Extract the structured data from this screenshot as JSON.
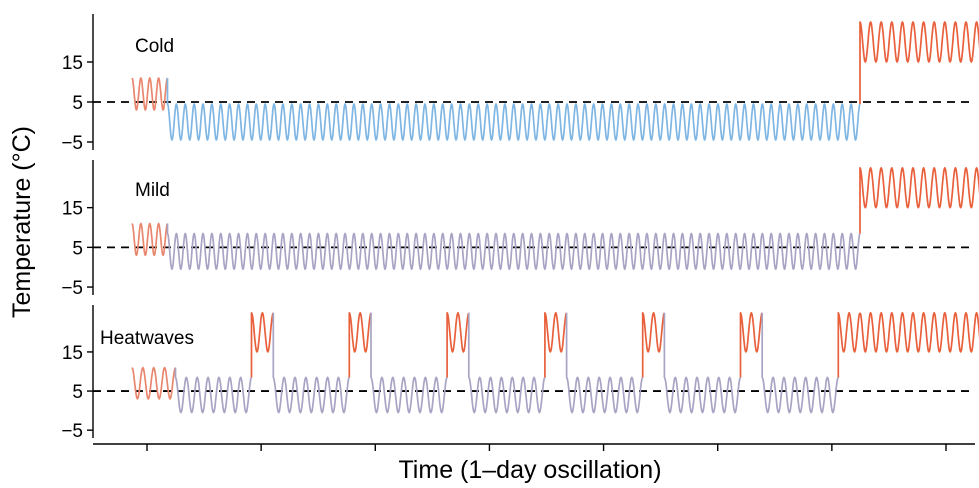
{
  "chart_data": {
    "type": "line",
    "xlabel": "Time (1–day oscillation)",
    "ylabel": "Temperature (°C)",
    "y_ticks": [
      15,
      5,
      -5
    ],
    "y_tick_labels": [
      "15",
      "5",
      "−5"
    ],
    "ylim": [
      -7,
      27
    ],
    "reference_line": 5,
    "x_tick_count": 8,
    "x_tick_labels": [],
    "grid": false,
    "colors": {
      "warm": "#e8603c",
      "cool": "#7fb6e3",
      "neutral": "#a8a4c4",
      "reference": "#000000"
    },
    "panels": [
      {
        "title": "Cold",
        "phases": [
          {
            "days": 4,
            "mean": 7,
            "amplitude": 4,
            "color": "#e8876e"
          },
          {
            "days": 78,
            "mean": 0,
            "amplitude": 4.5,
            "color": "#7fb6e3"
          },
          {
            "days": 12,
            "mean": 20,
            "amplitude": 5,
            "color": "#e8603c"
          }
        ]
      },
      {
        "title": "Mild",
        "phases": [
          {
            "days": 4,
            "mean": 7,
            "amplitude": 4,
            "color": "#e8876e"
          },
          {
            "days": 78,
            "mean": 4,
            "amplitude": 4.5,
            "color": "#a8a4c4"
          },
          {
            "days": 12,
            "mean": 20,
            "amplitude": 5,
            "color": "#e8603c"
          }
        ]
      },
      {
        "title": "Heatwaves",
        "phases": [
          {
            "days": 4,
            "mean": 7,
            "amplitude": 4,
            "color": "#e8876e"
          },
          {
            "days": 7,
            "mean": 4,
            "amplitude": 4.5,
            "color": "#a8a4c4"
          },
          {
            "days": 2,
            "mean": 20,
            "amplitude": 5,
            "color": "#e8603c"
          },
          {
            "days": 7,
            "mean": 4,
            "amplitude": 4.5,
            "color": "#a8a4c4"
          },
          {
            "days": 2,
            "mean": 20,
            "amplitude": 5,
            "color": "#e8603c"
          },
          {
            "days": 7,
            "mean": 4,
            "amplitude": 4.5,
            "color": "#a8a4c4"
          },
          {
            "days": 2,
            "mean": 20,
            "amplitude": 5,
            "color": "#e8603c"
          },
          {
            "days": 7,
            "mean": 4,
            "amplitude": 4.5,
            "color": "#a8a4c4"
          },
          {
            "days": 2,
            "mean": 20,
            "amplitude": 5,
            "color": "#e8603c"
          },
          {
            "days": 7,
            "mean": 4,
            "amplitude": 4.5,
            "color": "#a8a4c4"
          },
          {
            "days": 2,
            "mean": 20,
            "amplitude": 5,
            "color": "#e8603c"
          },
          {
            "days": 7,
            "mean": 4,
            "amplitude": 4.5,
            "color": "#a8a4c4"
          },
          {
            "days": 2,
            "mean": 20,
            "amplitude": 5,
            "color": "#e8603c"
          },
          {
            "days": 7,
            "mean": 4,
            "amplitude": 4.5,
            "color": "#a8a4c4"
          },
          {
            "days": 2,
            "mean": 20,
            "amplitude": 5,
            "color": "#e8603c"
          },
          {
            "days": 12,
            "mean": 20,
            "amplitude": 5,
            "color": "#e8603c"
          }
        ]
      }
    ]
  }
}
